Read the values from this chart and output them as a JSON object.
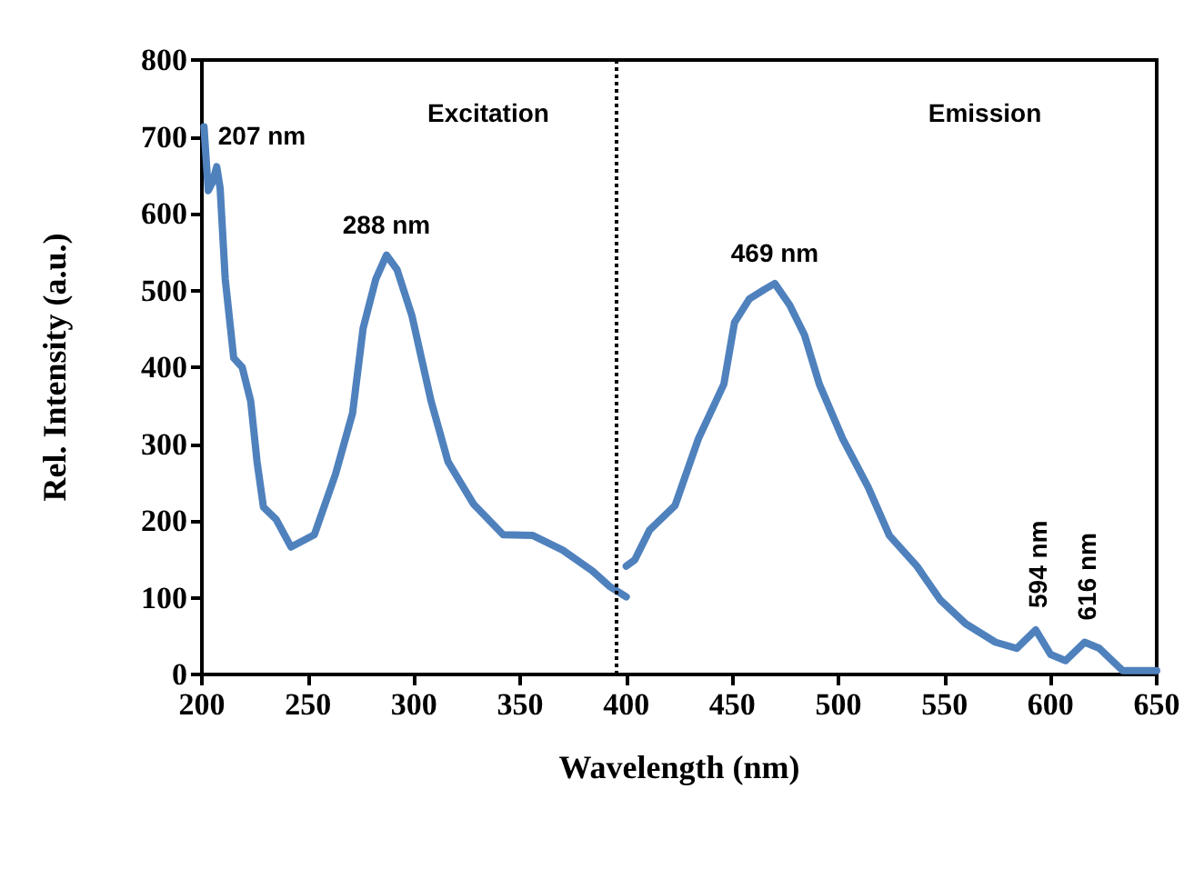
{
  "chart_data": {
    "type": "line",
    "xlabel": "Wavelength (nm)",
    "ylabel": "Rel. Intensity (a.u.)",
    "xlim": [
      200,
      650
    ],
    "xticks": [
      200,
      250,
      300,
      350,
      400,
      450,
      500,
      550,
      600,
      650
    ],
    "ylim": [
      0,
      800
    ],
    "yticks": [
      0,
      100,
      200,
      300,
      400,
      500,
      600,
      700,
      800
    ],
    "grid": false,
    "marker": "none",
    "line_style": "solid",
    "series": [
      {
        "color": "#4f81bd",
        "x": [
          201,
          203,
          205,
          207,
          208.6,
          211,
          215,
          219,
          223,
          226,
          229,
          235,
          242,
          253,
          263,
          271,
          276,
          282,
          287,
          292,
          299,
          308,
          316,
          328,
          342,
          356,
          370,
          384,
          392,
          400
        ],
        "values": [
          713,
          630,
          641,
          661,
          633,
          515,
          412,
          400,
          356,
          277,
          218,
          202,
          166,
          182,
          261,
          340,
          451,
          515,
          546,
          527,
          467,
          356,
          277,
          222,
          182,
          181,
          162,
          135,
          115,
          101
        ]
      },
      {
        "color": "#4f81bd",
        "x": [
          400,
          404,
          411,
          423,
          434,
          446,
          451,
          458,
          465,
          470,
          477,
          484,
          491,
          502,
          514,
          524,
          537,
          548,
          560,
          574,
          584,
          593,
          600,
          607,
          616,
          623,
          634,
          650
        ],
        "values": [
          141,
          149,
          188,
          220,
          307,
          378,
          458,
          489,
          501,
          509,
          481,
          442,
          378,
          307,
          244,
          181,
          141,
          97,
          66,
          42,
          34,
          58,
          26,
          18,
          42,
          34,
          5,
          5
        ]
      }
    ],
    "ref_lines": [
      {
        "axis": "x",
        "value": 395,
        "color": "#000000",
        "line_style": "dotted"
      }
    ],
    "annotations": [
      {
        "text": "207 nm",
        "x": 207,
        "y": 661
      },
      {
        "text": "288 nm",
        "x": 287,
        "y": 546
      },
      {
        "text": "469 nm",
        "x": 470,
        "y": 509
      },
      {
        "text": "594 nm",
        "x": 593,
        "y": 58
      },
      {
        "text": "616 nm",
        "x": 616,
        "y": 42
      },
      "Excitation",
      "Emission"
    ]
  }
}
